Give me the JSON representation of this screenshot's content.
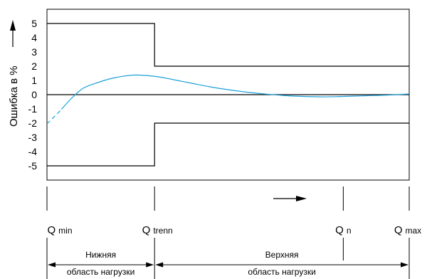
{
  "chart_data": {
    "type": "line",
    "title": "",
    "ylabel": "Ошибка в %",
    "xlabel": "",
    "ylim": [
      -6,
      6
    ],
    "yticks": [
      5,
      4,
      3,
      2,
      1,
      0,
      -1,
      -2,
      -3,
      -4,
      -5
    ],
    "yticklabels": [
      "5",
      "4",
      "3",
      "2",
      "1",
      "0",
      "-1",
      "-2",
      "-3",
      "-4",
      "-5"
    ],
    "x_relative": true,
    "xlim": [
      0,
      1
    ],
    "grid": false,
    "markers": [
      {
        "id": "qmin",
        "main": "Q",
        "sub": "min",
        "x": 0.0
      },
      {
        "id": "qtrenn",
        "main": "Q",
        "sub": "trenn",
        "x": 0.297
      },
      {
        "id": "qn",
        "main": "Q",
        "sub": "n",
        "x": 0.818
      },
      {
        "id": "qmax",
        "main": "Q",
        "sub": "max",
        "x": 1.0
      }
    ],
    "zones": [
      {
        "id": "lower",
        "top": "Нижняя",
        "bottom": "область нагрузки",
        "from": 0.0,
        "to": 0.297
      },
      {
        "id": "upper",
        "top": "Верхняя",
        "bottom": "область нагрузки",
        "from": 0.297,
        "to": 1.0
      }
    ],
    "series": [
      {
        "id": "upper-limit",
        "style": "step",
        "color": "#000000",
        "x": [
          0.0,
          0.297,
          0.297,
          1.0
        ],
        "y": [
          5,
          5,
          2,
          2
        ]
      },
      {
        "id": "lower-limit",
        "style": "step",
        "color": "#000000",
        "x": [
          0.0,
          0.297,
          0.297,
          1.0
        ],
        "y": [
          -5,
          -5,
          -2,
          -2
        ]
      },
      {
        "id": "zero-line",
        "style": "line",
        "color": "#000000",
        "x": [
          0.0,
          1.0
        ],
        "y": [
          0,
          0
        ]
      },
      {
        "id": "error-curve",
        "style": "curve",
        "color": "#1aa0d8",
        "dashed_until": 0.04,
        "x": [
          0.0,
          0.03,
          0.07,
          0.1,
          0.14,
          0.18,
          0.22,
          0.25,
          0.3,
          0.35,
          0.4,
          0.45,
          0.5,
          0.55,
          0.6,
          0.65,
          0.7,
          0.75,
          0.8,
          0.85,
          0.9,
          0.95,
          0.98,
          1.0
        ],
        "y": [
          -2.05,
          -1.3,
          -0.2,
          0.45,
          0.85,
          1.15,
          1.33,
          1.38,
          1.28,
          1.05,
          0.8,
          0.55,
          0.35,
          0.18,
          0.05,
          -0.05,
          -0.12,
          -0.15,
          -0.14,
          -0.1,
          -0.06,
          -0.02,
          0.02,
          0.05
        ]
      }
    ],
    "arrow": {
      "direction": "right",
      "position": "below-plot"
    },
    "colors": {
      "curve": "#1aa0d8",
      "lines": "#000000",
      "background": "#ffffff"
    }
  }
}
